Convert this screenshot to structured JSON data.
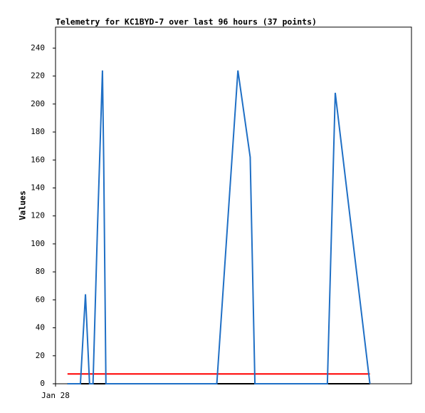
{
  "chart_data": {
    "type": "line",
    "title": "Telemetry for KC1BYD-7 over last 96 hours (37 points)",
    "ylabel": "Values",
    "xlim": [
      0,
      113
    ],
    "ylim": [
      0,
      255
    ],
    "xticks": [
      {
        "value": 0,
        "label": "Jan 28"
      }
    ],
    "yticks": [
      0,
      20,
      40,
      60,
      80,
      100,
      120,
      140,
      160,
      180,
      200,
      220,
      240
    ],
    "grid": false,
    "series": [
      {
        "color": "#000000",
        "x": [
          3.8,
          99.8
        ],
        "values": [
          0,
          0
        ]
      },
      {
        "color": "#ff0000",
        "x": [
          3.8,
          99.8
        ],
        "values": [
          7,
          7
        ]
      },
      {
        "color": "#1f6fc5",
        "x": [
          3.8,
          7.9,
          9.5,
          10.8,
          11.9,
          13.3,
          14.9,
          15.3,
          16,
          51.2,
          57.9,
          61.8,
          63.3,
          86.3,
          88.8,
          99.8
        ],
        "values": [
          0,
          0,
          64,
          0,
          0,
          110,
          224,
          158,
          0,
          0,
          224,
          162,
          0,
          0,
          208,
          0
        ]
      }
    ]
  }
}
